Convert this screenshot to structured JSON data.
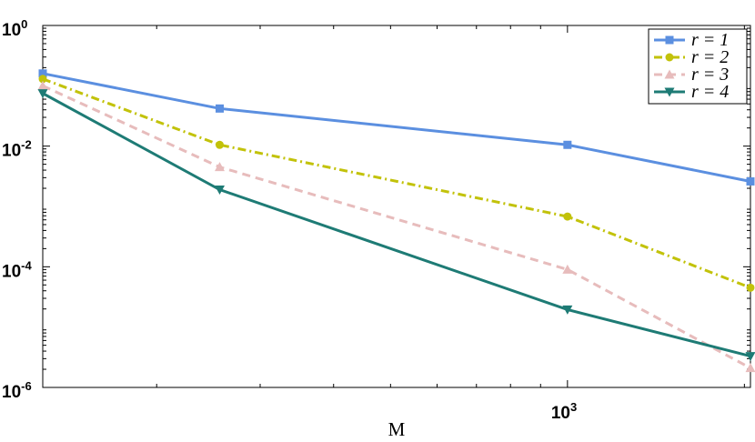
{
  "chart_data": {
    "type": "line",
    "title": "",
    "xlabel": "M",
    "ylabel": "",
    "xscale": "log",
    "yscale": "log",
    "xlim": [
      128,
      2048
    ],
    "ylim": [
      1e-06,
      1
    ],
    "grid": false,
    "legend_position": "top-right",
    "x": [
      128,
      256,
      1000,
      2048
    ],
    "x_ticks": [
      {
        "base": "10",
        "exp": "3",
        "value": 1000
      }
    ],
    "y_ticks": [
      {
        "base": "10",
        "exp": "0",
        "value": 1
      },
      {
        "base": "10",
        "exp": "-2",
        "value": 0.01
      },
      {
        "base": "10",
        "exp": "-4",
        "value": 0.0001
      },
      {
        "base": "10",
        "exp": "-6",
        "value": 1e-06
      }
    ],
    "series": [
      {
        "name": "r = 1",
        "color": "#5b8fe0",
        "dash": "solid",
        "marker": "square",
        "values": [
          0.16,
          0.042,
          0.0105,
          0.0026
        ]
      },
      {
        "name": "r = 2",
        "color": "#c2c20a",
        "dash": "dashdot",
        "marker": "circle",
        "values": [
          0.13,
          0.0105,
          0.00068,
          4.5e-05
        ]
      },
      {
        "name": "r = 3",
        "color": "#e7bcbc",
        "dash": "dashed",
        "marker": "triangle-up",
        "values": [
          0.1,
          0.0045,
          9e-05,
          2.1e-06
        ]
      },
      {
        "name": "r = 4",
        "color": "#1e7b75",
        "dash": "solid",
        "marker": "triangle-down",
        "values": [
          0.075,
          0.0019,
          1.95e-05,
          3.3e-06
        ]
      }
    ]
  }
}
